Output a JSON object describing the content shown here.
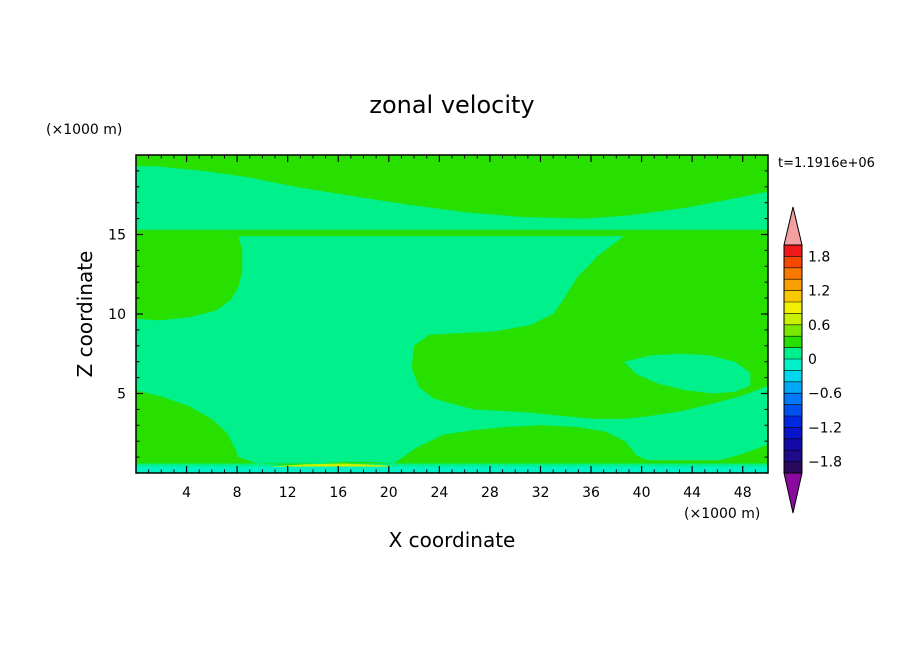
{
  "chart_data": {
    "type": "heatmap",
    "title": "zonal velocity",
    "xlabel": "X coordinate",
    "ylabel": "Z coordinate",
    "x_unit": "(×1000 m)",
    "y_unit": "(×1000 m)",
    "time_label": "t=1.1916e+06",
    "xlim": [
      0,
      50
    ],
    "ylim": [
      0,
      20
    ],
    "x_ticks": [
      4,
      8,
      12,
      16,
      20,
      24,
      28,
      32,
      36,
      40,
      44,
      48
    ],
    "y_ticks": [
      5,
      10,
      15
    ],
    "grid": false,
    "colorbar": {
      "levels": [
        -2.0,
        -1.8,
        -1.6,
        -1.4,
        -1.2,
        -1.0,
        -0.8,
        -0.6,
        -0.4,
        -0.2,
        0.0,
        0.2,
        0.4,
        0.6,
        0.8,
        1.0,
        1.2,
        1.4,
        1.6,
        1.8,
        2.0
      ],
      "colors": [
        "#2a0a5e",
        "#1f0a8a",
        "#140aa8",
        "#0a14c8",
        "#0028e0",
        "#0050f0",
        "#0078f8",
        "#00a8f8",
        "#00d8f0",
        "#00f0c8",
        "#00f08c",
        "#28e000",
        "#78e800",
        "#c8f000",
        "#f0f000",
        "#f8c800",
        "#f8a000",
        "#f87800",
        "#f84800",
        "#f01818"
      ],
      "under_color": "#8a0aa0",
      "over_color": "#f4a0a0",
      "tick_labels": [
        "1.8",
        "1.2",
        "0.6",
        "0",
        "−0.6",
        "−1.2",
        "−1.8"
      ]
    },
    "colors": {
      "low": "#00f08c",
      "high": "#28e000",
      "near_surface": "#00f0c8",
      "surface_max": "#c8f000"
    },
    "regions": [
      {
        "level": "high",
        "polygon": [
          [
            0,
            14.9
          ],
          [
            50,
            14.9
          ],
          [
            50,
            15.3
          ],
          [
            0,
            15.3
          ]
        ]
      },
      {
        "level": "high",
        "polygon": [
          [
            0,
            20
          ],
          [
            50,
            20
          ],
          [
            50,
            17.7
          ],
          [
            46.9,
            17.2
          ],
          [
            43.6,
            16.7
          ],
          [
            39,
            16.2
          ],
          [
            35.4,
            16
          ],
          [
            30.6,
            16.1
          ],
          [
            26.1,
            16.4
          ],
          [
            21.3,
            16.9
          ],
          [
            16.5,
            17.5
          ],
          [
            12.6,
            18
          ],
          [
            8.9,
            18.6
          ],
          [
            5.3,
            19
          ],
          [
            1.5,
            19.3
          ],
          [
            0,
            19.3
          ]
        ]
      },
      {
        "level": "high",
        "polygon": [
          [
            0,
            14.9
          ],
          [
            8.1,
            14.9
          ],
          [
            8.4,
            14
          ],
          [
            8.4,
            12.7
          ],
          [
            8.1,
            11.7
          ],
          [
            7.5,
            10.9
          ],
          [
            6.3,
            10.2
          ],
          [
            4.2,
            9.8
          ],
          [
            1.8,
            9.6
          ],
          [
            0,
            9.7
          ]
        ]
      },
      {
        "level": "high",
        "polygon": [
          [
            50,
            14.9
          ],
          [
            38.6,
            14.9
          ],
          [
            36.6,
            13.7
          ],
          [
            34.9,
            12.3
          ],
          [
            33.9,
            11
          ],
          [
            33,
            10
          ],
          [
            31.2,
            9.3
          ],
          [
            28.3,
            8.9
          ],
          [
            25.6,
            8.8
          ],
          [
            23.2,
            8.7
          ],
          [
            22,
            8
          ],
          [
            21.8,
            6.6
          ],
          [
            22.4,
            5.4
          ],
          [
            23.5,
            4.7
          ],
          [
            24.8,
            4.4
          ],
          [
            26.7,
            4
          ],
          [
            29,
            3.9
          ],
          [
            31.2,
            3.8
          ],
          [
            33.6,
            3.6
          ],
          [
            36.2,
            3.4
          ],
          [
            38.6,
            3.4
          ],
          [
            40.8,
            3.6
          ],
          [
            43.2,
            3.9
          ],
          [
            45.8,
            4.4
          ],
          [
            48.1,
            4.9
          ],
          [
            50,
            5.5
          ]
        ]
      },
      {
        "level": "high",
        "polygon": [
          [
            0,
            5.2
          ],
          [
            2.1,
            4.8
          ],
          [
            4.2,
            4.2
          ],
          [
            6,
            3.4
          ],
          [
            7.2,
            2.5
          ],
          [
            7.8,
            1.6
          ],
          [
            8.1,
            1
          ],
          [
            9.6,
            0.6
          ],
          [
            12,
            0.5
          ],
          [
            14.4,
            0.6
          ],
          [
            16.5,
            0.7
          ],
          [
            18.6,
            0.7
          ],
          [
            20.4,
            0.6
          ],
          [
            0,
            0.6
          ]
        ]
      },
      {
        "level": "high",
        "polygon": [
          [
            20.4,
            0.6
          ],
          [
            22.2,
            1.6
          ],
          [
            24.3,
            2.4
          ],
          [
            26.7,
            2.7
          ],
          [
            29.4,
            2.9
          ],
          [
            32.1,
            3
          ],
          [
            34.8,
            2.9
          ],
          [
            37.2,
            2.6
          ],
          [
            38.7,
            2
          ],
          [
            39.6,
            1.1
          ],
          [
            40.5,
            0.8
          ],
          [
            42.6,
            0.8
          ],
          [
            44.1,
            0.8
          ],
          [
            46.2,
            0.8
          ],
          [
            48,
            1.2
          ],
          [
            50,
            1.8
          ],
          [
            50,
            0.6
          ]
        ]
      },
      {
        "level": "low",
        "polygon": [
          [
            38.6,
            7
          ],
          [
            39.6,
            6.2
          ],
          [
            41.4,
            5.6
          ],
          [
            43.5,
            5.2
          ],
          [
            45.6,
            5
          ],
          [
            47.4,
            5.1
          ],
          [
            48.6,
            5.5
          ],
          [
            48.6,
            6.3
          ],
          [
            47.4,
            7
          ],
          [
            45.3,
            7.4
          ],
          [
            43.2,
            7.5
          ],
          [
            40.8,
            7.4
          ]
        ]
      },
      {
        "level": "near_surface",
        "polygon": [
          [
            0,
            0
          ],
          [
            50,
            0
          ],
          [
            50,
            0.4
          ],
          [
            0,
            0.4
          ]
        ]
      },
      {
        "level": "surface_max",
        "polygon": [
          [
            10.5,
            0.4
          ],
          [
            13.5,
            0.55
          ],
          [
            16.5,
            0.6
          ],
          [
            19.5,
            0.5
          ],
          [
            20.4,
            0.4
          ]
        ]
      }
    ]
  }
}
